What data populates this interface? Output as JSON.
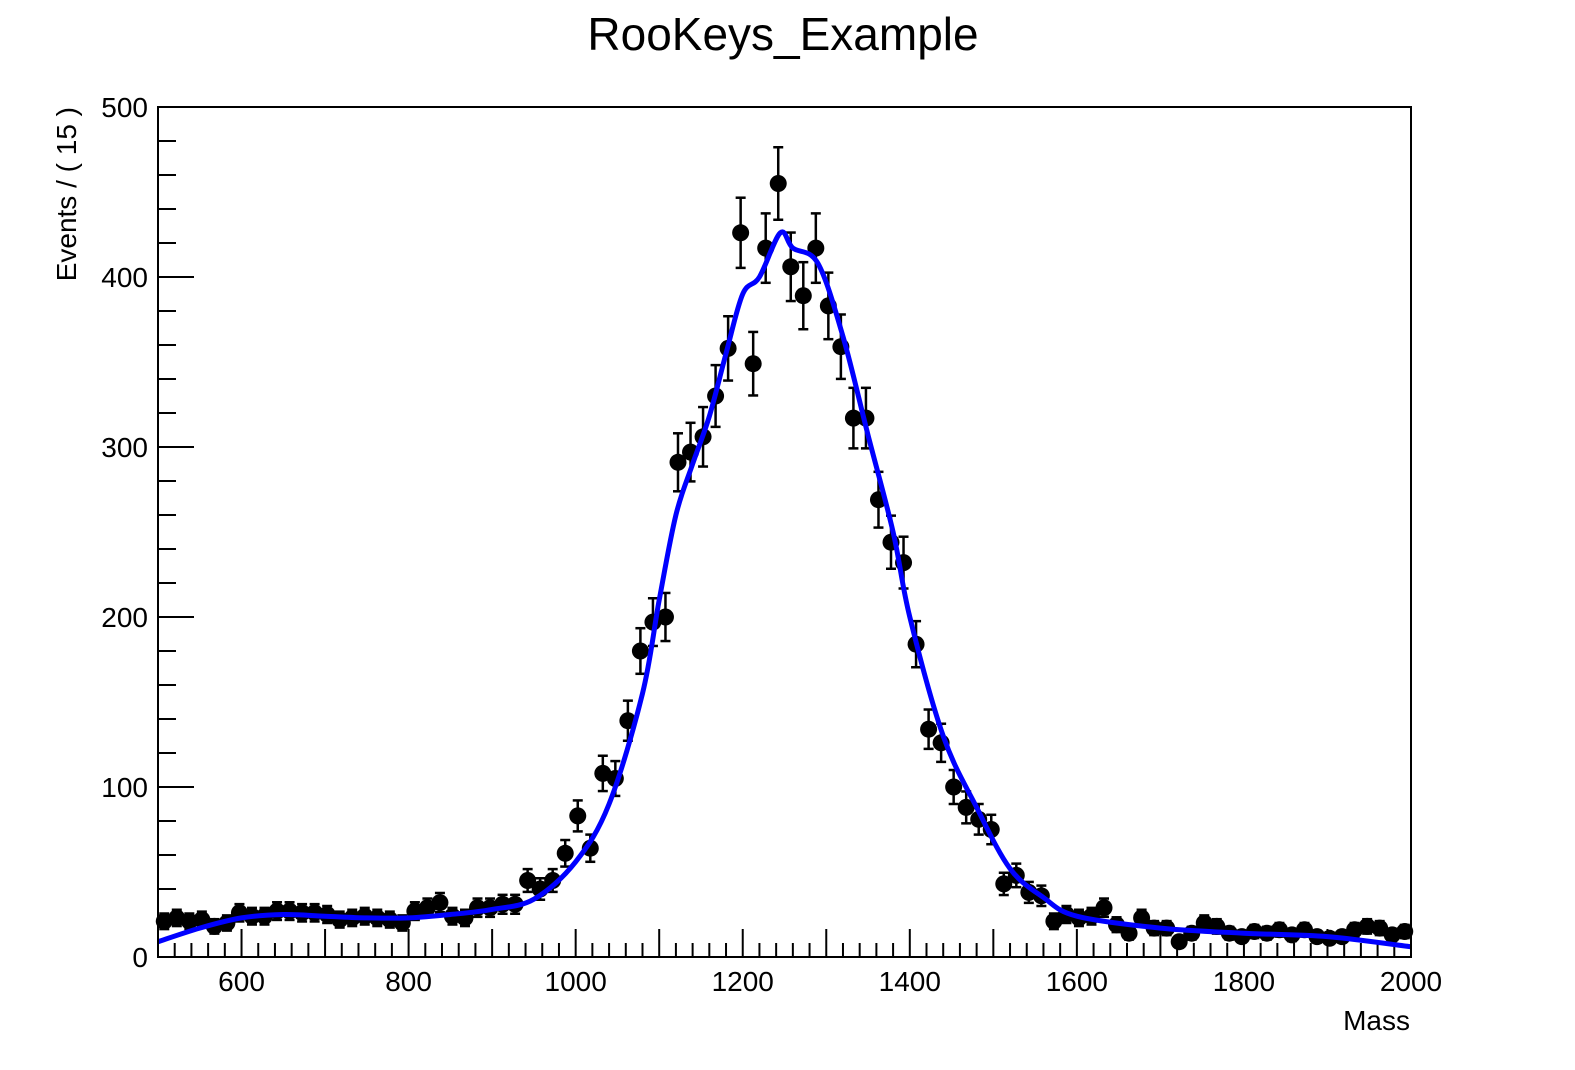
{
  "chart_data": {
    "type": "scatter",
    "title": "RooKeys_Example",
    "xlabel": "Mass",
    "ylabel": "Events / ( 15 )",
    "xlim": [
      500,
      2000
    ],
    "ylim": [
      0,
      500
    ],
    "x_ticks": [
      600,
      800,
      1000,
      1200,
      1400,
      1600,
      1800,
      2000
    ],
    "y_ticks": [
      0,
      100,
      200,
      300,
      400,
      500
    ],
    "grid": false,
    "legend": "none",
    "colors": {
      "data": "#000000",
      "fit": "#0000ff"
    },
    "series": [
      {
        "kind": "points_with_errors",
        "x": [
          507.5,
          522.5,
          537.5,
          552.5,
          567.5,
          582.5,
          597.5,
          612.5,
          627.5,
          642.5,
          657.5,
          672.5,
          687.5,
          702.5,
          717.5,
          732.5,
          747.5,
          762.5,
          777.5,
          792.5,
          807.5,
          822.5,
          837.5,
          852.5,
          867.5,
          882.5,
          897.5,
          912.5,
          927.5,
          942.5,
          957.5,
          972.5,
          987.5,
          1002.5,
          1017.5,
          1032.5,
          1047.5,
          1062.5,
          1077.5,
          1092.5,
          1107.5,
          1122.5,
          1137.5,
          1152.5,
          1167.5,
          1182.5,
          1197.5,
          1212.5,
          1227.5,
          1242.5,
          1257.5,
          1272.5,
          1287.5,
          1302.5,
          1317.5,
          1332.5,
          1347.5,
          1362.5,
          1377.5,
          1392.5,
          1407.5,
          1422.5,
          1437.5,
          1452.5,
          1467.5,
          1482.5,
          1497.5,
          1512.5,
          1527.5,
          1542.5,
          1557.5,
          1572.5,
          1587.5,
          1602.5,
          1617.5,
          1632.5,
          1647.5,
          1662.5,
          1677.5,
          1692.5,
          1707.5,
          1722.5,
          1737.5,
          1752.5,
          1767.5,
          1782.5,
          1797.5,
          1812.5,
          1827.5,
          1842.5,
          1857.5,
          1872.5,
          1887.5,
          1902.5,
          1917.5,
          1932.5,
          1947.5,
          1962.5,
          1977.5,
          1992.5
        ],
        "y": [
          21,
          23,
          21,
          22,
          18,
          20,
          26,
          24,
          24,
          27,
          27,
          26,
          26,
          25,
          22,
          23,
          24,
          23,
          22,
          20,
          27,
          29,
          32,
          24,
          23,
          29,
          29,
          31,
          31,
          45,
          40,
          45,
          61,
          83,
          64,
          108,
          105,
          139,
          180,
          197,
          200,
          291,
          297,
          306,
          330,
          358,
          426,
          349,
          417,
          455,
          406,
          389,
          417,
          383,
          359,
          317,
          317,
          269,
          244,
          232,
          184,
          134,
          126,
          100,
          88,
          81,
          75,
          43,
          48,
          38,
          36,
          21,
          25,
          23,
          24,
          29,
          19,
          14,
          23,
          17,
          17,
          9,
          14,
          20,
          18,
          14,
          12,
          15,
          14,
          16,
          13,
          16,
          12,
          11,
          12,
          16,
          18,
          17,
          13,
          15
        ]
      },
      {
        "kind": "curve",
        "x": [
          500,
          550,
          600,
          650,
          700,
          750,
          800,
          850,
          900,
          950,
          1000,
          1040,
          1080,
          1100,
          1120,
          1140,
          1160,
          1180,
          1200,
          1220,
          1245,
          1260,
          1290,
          1320,
          1350,
          1380,
          1400,
          1440,
          1480,
          1520,
          1560,
          1600,
          1700,
          1800,
          1900,
          2000
        ],
        "y": [
          9,
          17,
          23,
          25,
          24,
          23,
          23,
          25,
          28,
          34,
          56,
          90,
          155,
          210,
          260,
          290,
          318,
          355,
          390,
          400,
          426,
          417,
          408,
          365,
          307,
          250,
          200,
          130,
          88,
          52,
          35,
          24,
          17,
          14,
          12,
          6
        ]
      }
    ]
  }
}
